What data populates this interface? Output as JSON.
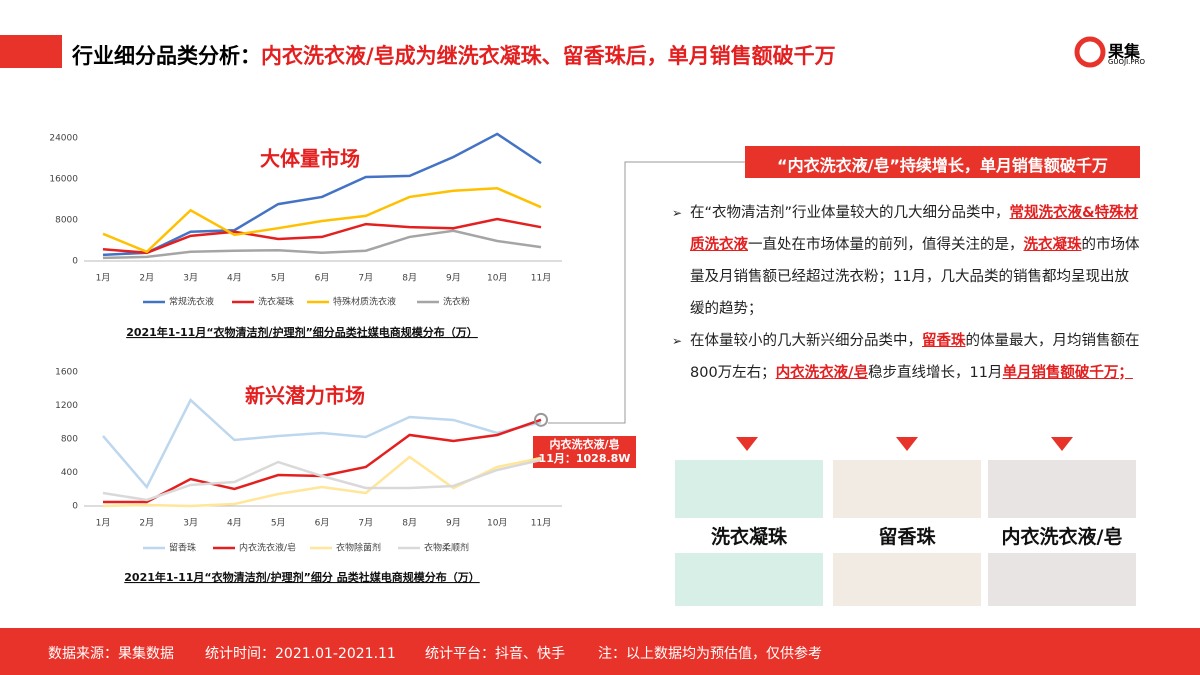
{
  "header": {
    "title_lead": "行业细分品类分析：",
    "title_main": "内衣洗衣液/皂成为继洗衣凝珠、留香珠后，单月销售额破千万",
    "logo": "果集",
    "logo_sub": "GUOJI.PRO"
  },
  "chart_data": [
    {
      "type": "line",
      "title": "大体量市场",
      "caption": "2021年1-11月“衣物清洁剂/护理剂”细分品类社媒电商规模分布（万）",
      "categories": [
        "1月",
        "2月",
        "3月",
        "4月",
        "5月",
        "6月",
        "7月",
        "8月",
        "9月",
        "10月",
        "11月"
      ],
      "ylim": [
        0,
        24000
      ],
      "yticks": [
        0,
        8000,
        16000,
        24000
      ],
      "grid": false,
      "series": [
        {
          "name": "常规洗衣液",
          "color": "#4472c4",
          "values": [
            1200,
            1600,
            5700,
            6000,
            11100,
            12500,
            16400,
            16600,
            20300,
            24800,
            19100
          ]
        },
        {
          "name": "洗衣凝珠",
          "color": "#e31f1f",
          "values": [
            2300,
            1600,
            4900,
            5700,
            4300,
            4700,
            7200,
            6600,
            6400,
            8200,
            6600
          ]
        },
        {
          "name": "特殊材质洗衣液",
          "color": "#ffc000",
          "values": [
            5300,
            1800,
            9900,
            5100,
            6400,
            7800,
            8800,
            12500,
            13700,
            14200,
            10500
          ]
        },
        {
          "name": "洗衣粉",
          "color": "#a5a5a5",
          "values": [
            600,
            800,
            1800,
            2000,
            2100,
            1600,
            2000,
            4700,
            5900,
            3900,
            2700
          ]
        }
      ]
    },
    {
      "type": "line",
      "title": "新兴潜力市场",
      "caption": "2021年1-11月“衣物清洁剂/护理剂”细分 品类社媒电商规模分布（万）",
      "categories": [
        "1月",
        "2月",
        "3月",
        "4月",
        "5月",
        "6月",
        "7月",
        "8月",
        "9月",
        "10月",
        "11月"
      ],
      "ylim": [
        0,
        1600
      ],
      "yticks": [
        0,
        400,
        800,
        1200,
        1600
      ],
      "grid": false,
      "annotation": [
        "内衣洗衣液/皂",
        "11月：1028.8W"
      ],
      "series": [
        {
          "name": "留香珠",
          "color": "#bdd7ee",
          "values": [
            836,
            227,
            1265,
            788,
            836,
            872,
            824,
            1063,
            1027,
            872,
            1000
          ]
        },
        {
          "name": "内衣洗衣液/皂",
          "color": "#e31f1f",
          "values": [
            48,
            48,
            322,
            203,
            370,
            358,
            466,
            848,
            776,
            848,
            1028.8
          ]
        },
        {
          "name": "衣物除菌剂",
          "color": "#ffe699",
          "values": [
            0,
            12,
            0,
            24,
            143,
            227,
            155,
            585,
            215,
            466,
            573
          ]
        },
        {
          "name": "衣物柔顺剂",
          "color": "#d9d9d9",
          "values": [
            155,
            72,
            251,
            287,
            525,
            358,
            215,
            215,
            239,
            430,
            549
          ]
        }
      ]
    }
  ],
  "panel": {
    "title": "“内衣洗衣液/皂”持续增长，单月销售额破千万",
    "bullets": [
      [
        "在“衣物清洁剂”行业体量较大的几大细分品类中，",
        "常规洗衣液&特殊材质洗衣液",
        "一直处在市场体量的前列，值得关注的是，",
        "洗衣凝珠",
        "的市场体量及月销售额已经超过洗衣粉；11月，几大品类的销售都均呈现出放缓的趋势；"
      ],
      [
        "在体量较小的几大新兴细分品类中，",
        "留香珠",
        "的体量最大，月均销售额在800万左右；",
        "内衣洗衣液/皂",
        "稳步直线增长，11月",
        "单月销售额破千万；"
      ]
    ],
    "products": [
      "洗衣凝珠",
      "留香珠",
      "内衣洗衣液/皂"
    ]
  },
  "footer": [
    "数据来源：果集数据",
    "统计时间：2021.01-2021.11",
    "统计平台：抖音、快手",
    "注：以上数据均为预估值，仅供参考"
  ]
}
